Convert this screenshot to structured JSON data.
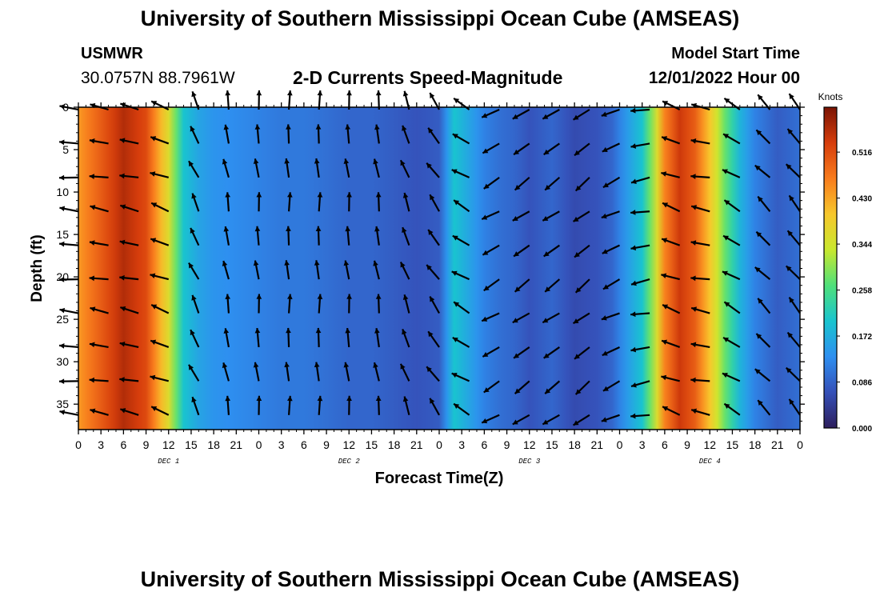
{
  "header": {
    "title": "University of Southern Mississippi Ocean Cube (AMSEAS)",
    "station": "USMWR",
    "coords": "30.0757N  88.7961W",
    "subtitle": "2-D Currents Speed-Magnitude",
    "model_label": "Model Start Time",
    "model_time": "12/01/2022 Hour 00"
  },
  "footer": {
    "title": "University of Southern Mississippi Ocean Cube (AMSEAS)"
  },
  "chart_data": {
    "type": "heatmap",
    "title": "2-D Currents Speed-Magnitude",
    "xlabel": "Forecast Time(Z)",
    "ylabel": "Depth (ft)",
    "x_tick_labels": [
      "0",
      "3",
      "6",
      "9",
      "12",
      "15",
      "18",
      "21",
      "0",
      "3",
      "6",
      "9",
      "12",
      "15",
      "18",
      "21",
      "0",
      "3",
      "6",
      "9",
      "12",
      "15",
      "18",
      "21",
      "0",
      "3",
      "6",
      "9",
      "12",
      "15",
      "18",
      "21",
      "0"
    ],
    "date_labels": [
      {
        "label": "DEC 1",
        "tick_index": 4
      },
      {
        "label": "DEC 2",
        "tick_index": 12
      },
      {
        "label": "DEC 3",
        "tick_index": 20
      },
      {
        "label": "DEC 4",
        "tick_index": 28
      }
    ],
    "x_range_hours": [
      0,
      96
    ],
    "y_ticks": [
      0,
      5,
      10,
      15,
      20,
      25,
      30,
      35
    ],
    "y_range_ft": [
      0,
      38
    ],
    "colorbar": {
      "unit": "Knots",
      "tick_labels": [
        "0.516",
        "0.430",
        "0.344",
        "0.258",
        "0.172",
        "0.086",
        "0.000"
      ],
      "range": [
        0.0,
        0.6
      ],
      "colors": [
        "#2d1e5c",
        "#3550b8",
        "#2e8ff0",
        "#19c4cf",
        "#4fe07a",
        "#c9e82e",
        "#f7c72c",
        "#f87c1d",
        "#d63d0c",
        "#7a1404"
      ]
    },
    "speed_profile_by_hour": [
      [
        0,
        0.44
      ],
      [
        3,
        0.5
      ],
      [
        6,
        0.56
      ],
      [
        9,
        0.52
      ],
      [
        12,
        0.36
      ],
      [
        14,
        0.2
      ],
      [
        16,
        0.16
      ],
      [
        18,
        0.14
      ],
      [
        21,
        0.13
      ],
      [
        24,
        0.12
      ],
      [
        27,
        0.11
      ],
      [
        30,
        0.11
      ],
      [
        33,
        0.1
      ],
      [
        36,
        0.09
      ],
      [
        39,
        0.09
      ],
      [
        42,
        0.08
      ],
      [
        45,
        0.07
      ],
      [
        48,
        0.08
      ],
      [
        50,
        0.2
      ],
      [
        52,
        0.16
      ],
      [
        54,
        0.12
      ],
      [
        56,
        0.1
      ],
      [
        58,
        0.09
      ],
      [
        60,
        0.07
      ],
      [
        63,
        0.09
      ],
      [
        66,
        0.06
      ],
      [
        69,
        0.07
      ],
      [
        71,
        0.09
      ],
      [
        72,
        0.12
      ],
      [
        75,
        0.2
      ],
      [
        77,
        0.36
      ],
      [
        78,
        0.46
      ],
      [
        80,
        0.54
      ],
      [
        82,
        0.5
      ],
      [
        84,
        0.4
      ],
      [
        86,
        0.28
      ],
      [
        88,
        0.18
      ],
      [
        90,
        0.12
      ],
      [
        93,
        0.08
      ],
      [
        96,
        0.1
      ]
    ],
    "arrow_times_hours": [
      0,
      4,
      8,
      12,
      16,
      20,
      24,
      28,
      32,
      36,
      40,
      44,
      48,
      52,
      56,
      60,
      64,
      68,
      72,
      76,
      80,
      84,
      88,
      92,
      96
    ],
    "arrow_depths_ft": [
      0,
      4,
      8,
      12,
      16,
      20,
      24,
      28,
      32,
      36
    ],
    "arrow_angles_deg_by_time": [
      175,
      170,
      168,
      160,
      115,
      100,
      95,
      92,
      92,
      95,
      98,
      110,
      125,
      150,
      210,
      215,
      215,
      218,
      205,
      190,
      160,
      170,
      150,
      135,
      130
    ]
  }
}
